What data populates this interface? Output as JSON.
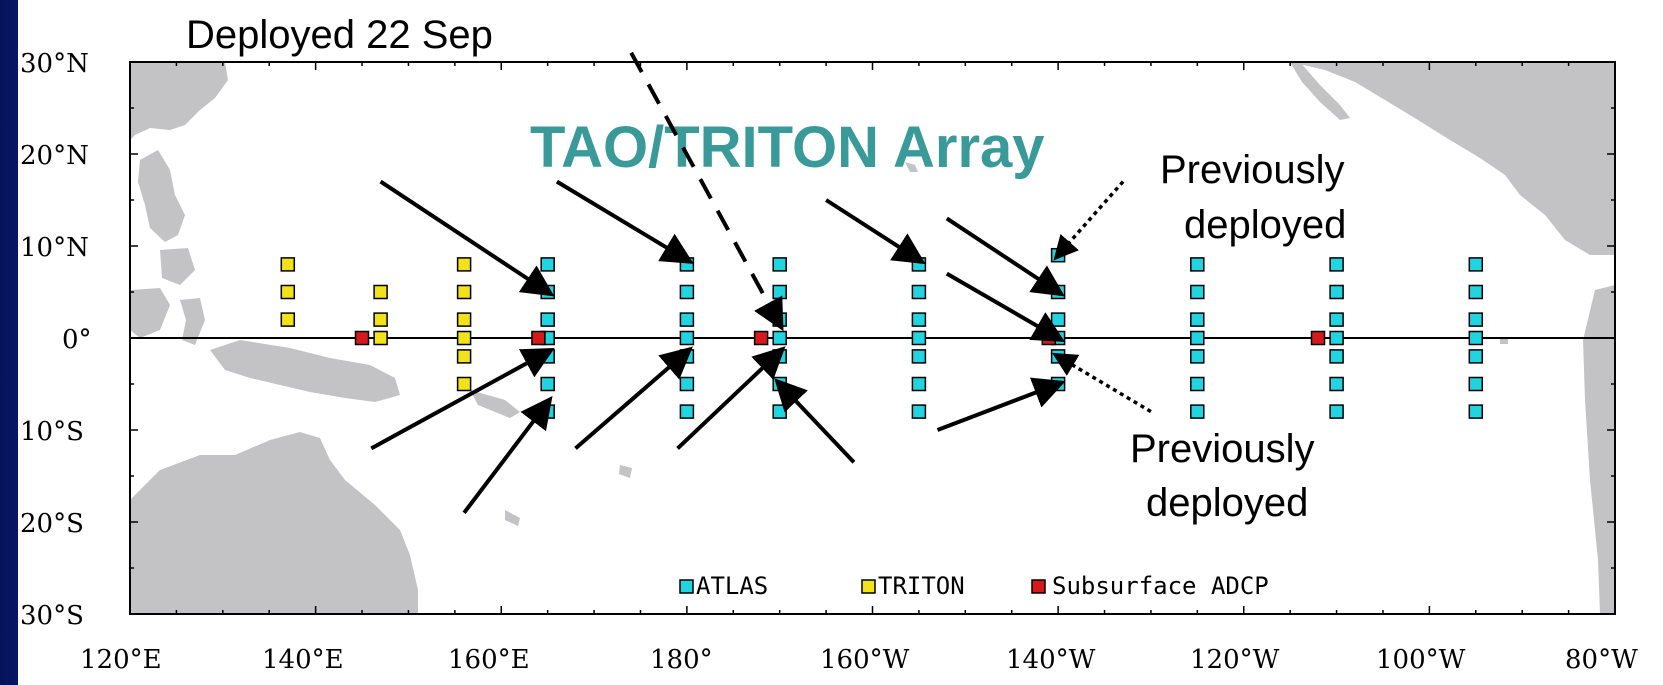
{
  "title": "TAO/TRITON Array",
  "annotations": {
    "deployed": "Deployed 22 Sep",
    "previously_top_line1": "Previously",
    "previously_top_line2": "deployed",
    "previously_bottom_line1": "Previously",
    "previously_bottom_line2": "deployed"
  },
  "axes": {
    "x_ticks": [
      "120°E",
      "140°E",
      "160°E",
      "180°",
      "160°W",
      "140°W",
      "120°W",
      "100°W",
      "80°W"
    ],
    "y_ticks": [
      "30°N",
      "20°N",
      "10°N",
      "0°",
      "10°S",
      "20°S",
      "30°S"
    ],
    "lon_range": [
      120,
      280
    ],
    "lat_range": [
      -30,
      30
    ]
  },
  "legend": {
    "atlas": "ATLAS",
    "triton": "TRITON",
    "adcp": "Subsurface ADCP"
  },
  "colors": {
    "atlas": "#22d3e0",
    "triton": "#f2e21a",
    "adcp": "#d41a1a",
    "land": "#c3c3c6",
    "ocean": "#ffffff",
    "title": "#3a9a9a",
    "background": "#0a1a6e"
  },
  "moorings": {
    "triton": [
      [
        137,
        8
      ],
      [
        137,
        5
      ],
      [
        137,
        2
      ],
      [
        147,
        5
      ],
      [
        147,
        2
      ],
      [
        147,
        0
      ],
      [
        156,
        8
      ],
      [
        156,
        5
      ],
      [
        156,
        2
      ],
      [
        156,
        0
      ],
      [
        156,
        -2
      ],
      [
        156,
        -5
      ]
    ],
    "atlas": [
      [
        165,
        8
      ],
      [
        165,
        5
      ],
      [
        165,
        2
      ],
      [
        165,
        0
      ],
      [
        165,
        -2
      ],
      [
        165,
        -5
      ],
      [
        165,
        -8
      ],
      [
        180,
        8
      ],
      [
        180,
        5
      ],
      [
        180,
        2
      ],
      [
        180,
        0
      ],
      [
        180,
        -2
      ],
      [
        180,
        -5
      ],
      [
        180,
        -8
      ],
      [
        190,
        8
      ],
      [
        190,
        5
      ],
      [
        190,
        2
      ],
      [
        190,
        0
      ],
      [
        190,
        -2
      ],
      [
        190,
        -5
      ],
      [
        190,
        -8
      ],
      [
        205,
        8
      ],
      [
        205,
        5
      ],
      [
        205,
        2
      ],
      [
        205,
        0
      ],
      [
        205,
        -2
      ],
      [
        205,
        -5
      ],
      [
        205,
        -8
      ],
      [
        220,
        9
      ],
      [
        220,
        5
      ],
      [
        220,
        2
      ],
      [
        220,
        0
      ],
      [
        220,
        -2
      ],
      [
        220,
        -5
      ],
      [
        235,
        8
      ],
      [
        235,
        5
      ],
      [
        235,
        2
      ],
      [
        235,
        0
      ],
      [
        235,
        -2
      ],
      [
        235,
        -5
      ],
      [
        235,
        -8
      ],
      [
        250,
        8
      ],
      [
        250,
        5
      ],
      [
        250,
        2
      ],
      [
        250,
        0
      ],
      [
        250,
        -2
      ],
      [
        250,
        -5
      ],
      [
        250,
        -8
      ],
      [
        265,
        8
      ],
      [
        265,
        5
      ],
      [
        265,
        2
      ],
      [
        265,
        0
      ],
      [
        265,
        -2
      ],
      [
        265,
        -5
      ],
      [
        265,
        -8
      ]
    ],
    "adcp": [
      [
        145,
        0
      ],
      [
        164,
        0
      ],
      [
        188,
        0
      ],
      [
        219,
        0
      ],
      [
        248,
        0
      ]
    ]
  },
  "arrows": [
    {
      "from": [
        147,
        17
      ],
      "to": [
        165,
        5
      ]
    },
    {
      "from": [
        166,
        17
      ],
      "to": [
        180,
        8.5
      ]
    },
    {
      "from": [
        195,
        15
      ],
      "to": [
        205,
        8.5
      ]
    },
    {
      "from": [
        208,
        13
      ],
      "to": [
        220,
        5
      ]
    },
    {
      "from": [
        208,
        7
      ],
      "to": [
        220,
        0
      ]
    },
    {
      "from": [
        146,
        -12
      ],
      "to": [
        165,
        -1.5
      ]
    },
    {
      "from": [
        156,
        -19
      ],
      "to": [
        165,
        -7
      ]
    },
    {
      "from": [
        168,
        -12
      ],
      "to": [
        180,
        -1.5
      ]
    },
    {
      "from": [
        179,
        -12
      ],
      "to": [
        190,
        -1.5
      ]
    },
    {
      "from": [
        198,
        -13.5
      ],
      "to": [
        190,
        -5
      ]
    },
    {
      "from": [
        207,
        -10
      ],
      "to": [
        220,
        -5
      ]
    }
  ],
  "dashed_arrow": {
    "from": [
      174,
      31
    ],
    "to": [
      190,
      1.5
    ]
  },
  "dotted_arrows": [
    {
      "from": [
        227,
        17
      ],
      "to": [
        220,
        9
      ]
    },
    {
      "from": [
        230,
        -8
      ],
      "to": [
        220,
        -2
      ]
    }
  ]
}
